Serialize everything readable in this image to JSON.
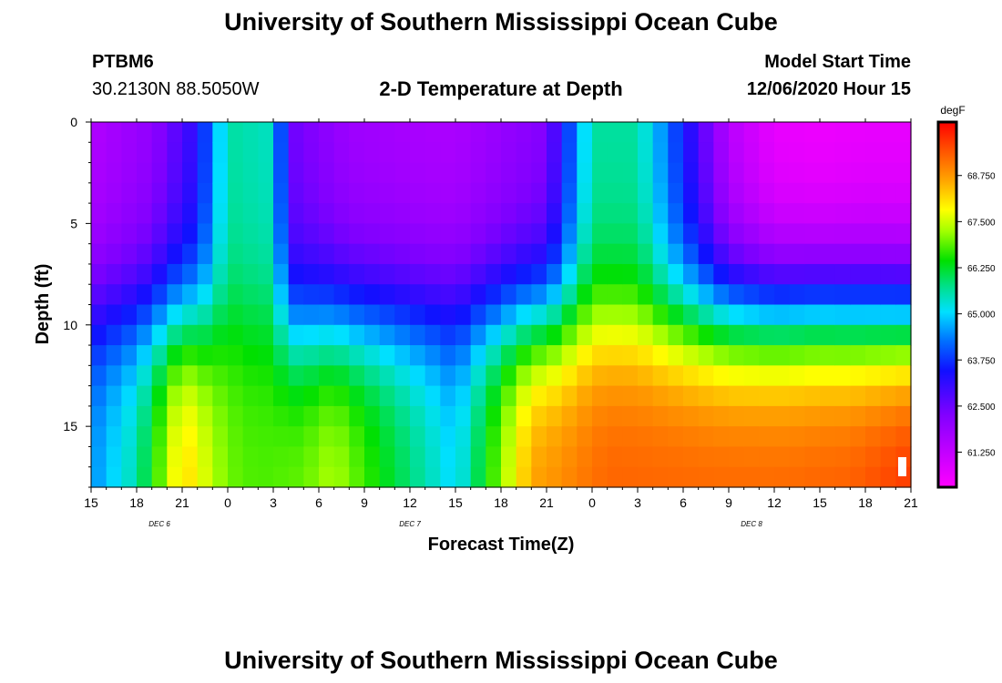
{
  "header": {
    "title": "University of Southern Mississippi Ocean Cube",
    "station_id": "PTBM6",
    "coordinates": "30.2130N 88.5050W",
    "subtitle": "2-D Temperature at Depth",
    "model_start_label": "Model Start Time",
    "model_start_value": "12/06/2020 Hour 15"
  },
  "footer": {
    "title": "University of Southern Mississippi Ocean Cube"
  },
  "chart_data": {
    "type": "heatmap",
    "title": "2-D Temperature at Depth",
    "xlabel": "Forecast Time(Z)",
    "ylabel": "Depth (ft)",
    "x_range": [
      0,
      54
    ],
    "y_range": [
      0,
      18
    ],
    "x_ticks": [
      {
        "t": 0,
        "label": "15"
      },
      {
        "t": 3,
        "label": "18"
      },
      {
        "t": 6,
        "label": "21"
      },
      {
        "t": 9,
        "label": "0"
      },
      {
        "t": 12,
        "label": "3"
      },
      {
        "t": 15,
        "label": "6"
      },
      {
        "t": 18,
        "label": "9"
      },
      {
        "t": 21,
        "label": "12"
      },
      {
        "t": 24,
        "label": "15"
      },
      {
        "t": 27,
        "label": "18"
      },
      {
        "t": 30,
        "label": "21"
      },
      {
        "t": 33,
        "label": "0"
      },
      {
        "t": 36,
        "label": "3"
      },
      {
        "t": 39,
        "label": "6"
      },
      {
        "t": 42,
        "label": "9"
      },
      {
        "t": 45,
        "label": "12"
      },
      {
        "t": 48,
        "label": "15"
      },
      {
        "t": 51,
        "label": "18"
      },
      {
        "t": 54,
        "label": "21"
      }
    ],
    "day_labels": [
      {
        "t": 4.5,
        "label": "DEC 6"
      },
      {
        "t": 21,
        "label": "DEC 7"
      },
      {
        "t": 43.5,
        "label": "DEC 8"
      }
    ],
    "y_ticks": [
      0,
      5,
      10,
      15
    ],
    "colorbar": {
      "unit": "degF",
      "min": 60.3,
      "max": 70.2,
      "tick_values": [
        61.25,
        62.5,
        63.75,
        65.0,
        66.25,
        67.5,
        68.75
      ],
      "tick_labels": [
        "61.250",
        "62.500",
        "63.750",
        "65.000",
        "66.250",
        "67.500",
        "68.750"
      ]
    },
    "shallow_temperature_profile": {
      "time_hours": [
        0,
        4,
        7,
        9,
        12,
        13,
        17,
        22,
        24,
        30,
        33,
        36,
        40,
        42,
        45,
        48,
        51,
        54
      ],
      "surface_degF": [
        61.5,
        62.0,
        63.2,
        65.6,
        65.4,
        62.5,
        61.8,
        61.6,
        61.6,
        62.2,
        65.6,
        65.6,
        62.8,
        61.4,
        60.6,
        60.5,
        60.6,
        60.6
      ]
    },
    "bottom_temperature_profile": {
      "time_hours": [
        0,
        3,
        6,
        9,
        11,
        14,
        16,
        20,
        24,
        29,
        34,
        40,
        46,
        50,
        54
      ],
      "bottom_degF": [
        64.5,
        65.6,
        68.3,
        67.0,
        66.8,
        67.0,
        67.4,
        66.2,
        65.0,
        68.7,
        69.3,
        69.3,
        69.3,
        69.4,
        69.8
      ]
    }
  }
}
